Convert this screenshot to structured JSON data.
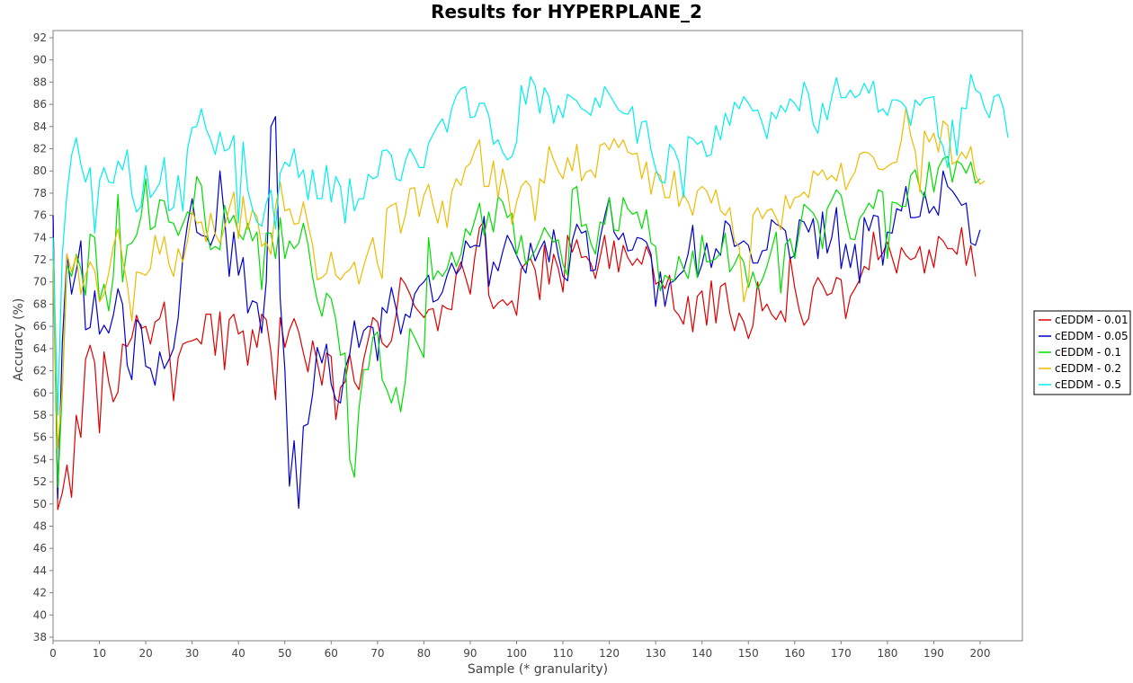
{
  "chart_data": {
    "type": "line",
    "title": "Results for HYPERPLANE_2",
    "xlabel": "Sample (* granularity)",
    "ylabel": "Accuracy (%)",
    "xlim": [
      0,
      210
    ],
    "ylim": [
      37.5,
      93
    ],
    "x_ticks": [
      0,
      10,
      20,
      30,
      40,
      50,
      60,
      70,
      80,
      90,
      100,
      110,
      120,
      130,
      140,
      150,
      160,
      170,
      180,
      190,
      200
    ],
    "y_ticks": [
      38,
      40,
      42,
      44,
      46,
      48,
      50,
      52,
      54,
      56,
      58,
      60,
      62,
      64,
      66,
      68,
      70,
      72,
      74,
      76,
      78,
      80,
      82,
      84,
      86,
      88,
      90,
      92
    ],
    "grid": false,
    "legend_position": "right",
    "series": [
      {
        "name": "cEDDM - 0.01",
        "color": "#dd0000",
        "x_start": 0,
        "values": [
          76,
          49.5,
          51,
          53.5,
          50.6,
          58,
          56,
          63,
          64.3,
          62.7,
          56.4,
          63.7,
          61,
          59.2,
          60.1,
          64.4,
          64.2,
          65,
          67,
          65.8,
          66,
          64.4,
          66.4,
          66.7,
          68.2,
          64,
          59.3,
          63.2,
          64.4,
          64.6,
          64.7,
          64.9,
          64.4,
          67.1,
          67.1,
          63.4,
          67.3,
          62.1,
          66.6,
          67.1,
          65.3,
          65.6,
          62.5,
          65.7,
          64.1,
          67.1,
          66.6,
          63.7,
          59.4,
          66.8,
          64.1,
          65.7,
          66.7,
          65.5,
          63.6,
          61.9,
          64.7,
          62.8,
          60.7,
          63.6,
          63.3,
          57.6,
          60.5,
          61,
          63.5,
          61,
          60.3,
          63,
          64.8,
          66.8,
          66.4,
          64.5,
          64.1,
          64.7,
          67,
          70.4,
          69.8,
          68.9,
          67.8,
          67.3,
          66.8,
          67.5,
          67.6,
          65.6,
          67.9,
          67.6,
          67.5,
          70.8,
          71.8,
          70.4,
          68.9,
          72.3,
          74.9,
          75.5,
          68.8,
          67.6,
          68.1,
          68.4,
          67.9,
          68.3,
          67,
          71.2,
          71.7,
          72.1,
          71.1,
          68.4,
          73.3,
          69.8,
          72.5,
          71.2,
          69.1,
          74.2,
          72.7,
          73.8,
          72.2,
          72.3,
          71.7,
          70.3,
          72.2,
          74.2,
          71.2,
          73.7,
          70.9,
          73.3,
          72.2,
          71.5,
          72.1,
          71.6,
          73.2,
          72.2,
          69.8,
          70.1,
          69.4,
          70.6,
          67.5,
          67,
          66.2,
          68.7,
          65.5,
          68.7,
          69.2,
          66.1,
          70.1,
          66.3,
          69.6,
          69.9,
          67.2,
          65.6,
          67.2,
          66.4,
          64.9,
          66.1,
          70,
          67.4,
          68,
          67.1,
          66.6,
          67.4,
          66.4,
          72.3,
          69.5,
          67.4,
          66.1,
          66.7,
          69.5,
          70.4,
          69.7,
          68.8,
          69,
          70.4,
          70.2,
          66.7,
          68.7,
          69.4,
          70.2,
          71.4,
          71.1,
          74.5,
          72,
          72.6,
          73.6,
          72.2,
          70.8,
          73.1,
          72.4,
          72,
          72.2,
          73.2,
          70.8,
          72.9,
          71.3,
          74.1,
          73.7,
          73,
          73,
          72.5,
          74.9,
          71.5,
          73.3,
          70.5
        ]
      },
      {
        "name": "cEDDM - 0.05",
        "color": "#0000cc",
        "x_start": 0,
        "values": [
          76,
          50.5,
          64.5,
          72.5,
          68.9,
          71,
          73.7,
          65.7,
          65.9,
          69.2,
          65.3,
          66.1,
          65.4,
          67,
          69.4,
          68,
          62.5,
          61.2,
          66.6,
          66.1,
          62.4,
          62.2,
          60.7,
          63.7,
          62.2,
          63,
          64,
          66.8,
          72.2,
          75.2,
          77.5,
          74.5,
          74.2,
          74.1,
          73.3,
          74.4,
          80,
          75.8,
          70.5,
          74.5,
          70.6,
          72.2,
          67.2,
          68.3,
          68.1,
          65.4,
          70,
          84,
          84.9,
          68.5,
          62.1,
          51.6,
          55.7,
          49.6,
          57,
          57.2,
          59.9,
          64.1,
          62.7,
          64.4,
          60.8,
          59.4,
          59.1,
          62.2,
          63.5,
          66.5,
          64.1,
          65.6,
          66,
          65.9,
          62.9,
          67.7,
          67.2,
          69.5,
          67.6,
          65.3,
          67.1,
          66.8,
          68.9,
          69.6,
          70,
          70.6,
          68.2,
          68.4,
          69.1,
          70.6,
          71.7,
          70.7,
          71.3,
          73.7,
          73.1,
          73.3,
          73.2,
          75.9,
          69.6,
          71.8,
          71,
          72.7,
          74.2,
          73.4,
          72.4,
          71.5,
          70.8,
          73.5,
          71.9,
          72.9,
          73.7,
          71.8,
          74.7,
          72.4,
          70.5,
          70.1,
          73.7,
          75.2,
          74.4,
          74.6,
          71,
          71.1,
          73.9,
          75.9,
          77.6,
          74.5,
          73.8,
          74.4,
          72.8,
          72.9,
          74,
          73.9,
          73.6,
          72.5,
          67.8,
          70.9,
          67.8,
          69.9,
          70.1,
          70.6,
          71,
          72.5,
          75.1,
          70.4,
          71.6,
          73.5,
          71.3,
          73,
          72.4,
          75.5,
          75.1,
          73.2,
          73.4,
          73.7,
          73.3,
          71.7,
          71.7,
          72.8,
          72.9,
          75.6,
          75.2,
          75,
          74.6,
          72.1,
          72.4,
          75.6,
          75.4,
          74.5,
          75.7,
          72.1,
          76.3,
          72.6,
          74,
          76.7,
          71.2,
          73.4,
          71.3,
          73.4,
          69.9,
          75.8,
          74.6,
          76,
          75.9,
          71.5,
          74.5,
          74.4,
          76.6,
          76.4,
          78.6,
          75.8,
          75.8,
          75.9,
          78.1,
          76.2,
          76.8,
          76,
          80,
          78.6,
          78.2,
          77.6,
          76.9,
          77.1,
          73.5,
          73.3,
          74.7
        ]
      },
      {
        "name": "cEDDM - 0.1",
        "color": "#00dd00",
        "x_start": 0,
        "values": [
          72,
          51.5,
          60.2,
          71.5,
          70.5,
          72.5,
          71.2,
          68.8,
          74.3,
          74,
          68.3,
          69.8,
          67.4,
          70.5,
          77.9,
          70,
          73.3,
          73.5,
          74.2,
          75.9,
          79.3,
          74.7,
          75,
          77.4,
          77.3,
          75.4,
          75.3,
          74.2,
          75.2,
          76.3,
          76.1,
          79.5,
          78.7,
          74.8,
          72.9,
          73.2,
          72.9,
          76.9,
          75.3,
          76,
          74.4,
          73.8,
          75.3,
          73.7,
          74.5,
          69.3,
          74.4,
          74.4,
          72.1,
          75.8,
          72.1,
          73.7,
          73,
          73.5,
          75.3,
          73.4,
          70.4,
          68.3,
          66.9,
          69,
          68.5,
          66.6,
          63.4,
          63.6,
          54,
          52.4,
          58.6,
          62.1,
          62.1,
          65,
          65.5,
          61.2,
          60.3,
          59.1,
          60.5,
          58.3,
          61.1,
          65.8,
          65,
          64.1,
          63.2,
          74,
          70.2,
          71,
          70.5,
          71.2,
          72.7,
          71.4,
          72.5,
          74.8,
          74.2,
          75.6,
          77.1,
          74.2,
          76.3,
          74.5,
          77.7,
          77.2,
          75.8,
          76.2,
          72.4,
          74.2,
          71.6,
          72.2,
          72.8,
          73.8,
          74.9,
          74.2,
          73.6,
          73.8,
          71.6,
          70.6,
          78.3,
          78.6,
          75,
          75.2,
          73.5,
          72.5,
          75.4,
          75.2,
          77.6,
          74.7,
          74.6,
          77.6,
          76.6,
          76.1,
          76.3,
          74.8,
          76.5,
          73.5,
          73.2,
          69.2,
          70.6,
          70.3,
          70.1,
          72.3,
          71.2,
          70.3,
          72.8,
          70.4,
          74.2,
          71.8,
          71.9,
          72.1,
          72.6,
          74.4,
          70.9,
          71.6,
          72.5,
          71.8,
          69.5,
          70.9,
          69.4,
          70.2,
          71.4,
          72.9,
          74.5,
          69,
          73.4,
          73.9,
          72.1,
          74.6,
          77,
          76.6,
          76.2,
          75.4,
          73,
          76.6,
          77.4,
          78.3,
          77.8,
          75.8,
          73.9,
          73.8,
          75.7,
          76.3,
          77.1,
          76.6,
          78.3,
          78.1,
          72.1,
          77.2,
          77.1,
          76.8,
          76.8,
          79.6,
          80.1,
          78.4,
          77.6,
          80.8,
          78.1,
          80.3,
          81.1,
          81.3,
          79,
          80.9,
          80.6,
          79.8,
          80.8,
          78.9,
          79.3
        ]
      },
      {
        "name": "cEDDM - 0.2",
        "color": "#eebb00",
        "x_start": 0,
        "values": [
          72,
          55,
          60.4,
          72.5,
          70.9,
          72.4,
          68.9,
          70.6,
          71.8,
          71,
          68.2,
          68.9,
          70.8,
          73.2,
          74.8,
          72.1,
          69.8,
          66.5,
          70.9,
          70.8,
          70.6,
          71.2,
          74.2,
          72.5,
          74.1,
          71.6,
          70.5,
          73,
          71.8,
          73.7,
          76.4,
          75.3,
          75.4,
          73.6,
          76.2,
          74.3,
          73.5,
          74.9,
          76.6,
          78.1,
          73.9,
          77.7,
          74.7,
          76.5,
          75.9,
          73.2,
          73.6,
          72.5,
          76.8,
          79,
          76.4,
          76.6,
          75.2,
          75.3,
          77.2,
          75.2,
          73.3,
          70.2,
          70.4,
          70.8,
          72.7,
          70.6,
          70.2,
          70.8,
          71.1,
          71.8,
          69.8,
          71.4,
          72.8,
          74,
          71.6,
          70.3,
          76.6,
          76.9,
          77.1,
          74.4,
          76,
          78.4,
          78.5,
          75.9,
          77.8,
          78.8,
          76.9,
          75.3,
          77.3,
          74.9,
          78.1,
          79.3,
          78.7,
          80.3,
          80.7,
          81.9,
          82.8,
          78.6,
          78.6,
          80.9,
          77.6,
          80.2,
          78.4,
          75.2,
          77.2,
          78.6,
          79.1,
          78.6,
          75.5,
          79.3,
          78.9,
          82.2,
          81,
          80,
          79.3,
          81.2,
          80,
          82.4,
          79.1,
          79.9,
          80.1,
          79.4,
          82.3,
          82.5,
          81.9,
          82.9,
          82.1,
          82.8,
          81.7,
          81.5,
          81.6,
          79.3,
          80.8,
          77.9,
          79.9,
          79.6,
          77.6,
          77.6,
          80,
          76.8,
          77.9,
          77.2,
          76,
          78.2,
          78.6,
          78.2,
          77.1,
          78.3,
          76.4,
          76,
          76.7,
          73.7,
          73.2,
          68.2,
          70,
          76,
          76.7,
          75.7,
          76.4,
          76.6,
          75.8,
          74.7,
          77.8,
          76.6,
          77.6,
          77.7,
          78.1,
          77.6,
          80,
          79.6,
          80.1,
          79.2,
          79.6,
          79.1,
          80.7,
          78.3,
          79.2,
          79.9,
          81.5,
          81.7,
          81.6,
          81.2,
          80.2,
          80.1,
          80.4,
          80.7,
          80.8,
          82.8,
          85.7,
          83.2,
          81.8,
          78.1,
          83.6,
          82.6,
          83.4,
          81.7,
          84.5,
          84.1,
          80.6,
          80.9,
          81.7,
          81.1,
          82.2,
          79.6,
          78.8,
          79.1
        ]
      },
      {
        "name": "cEDDM - 0.5",
        "color": "#00eeee",
        "x_start": 0,
        "values": [
          74,
          58,
          72.5,
          78,
          81.4,
          83,
          80.6,
          79,
          80.3,
          74.4,
          79.1,
          80.3,
          79,
          78.9,
          80.9,
          80.1,
          81.9,
          77.9,
          76.3,
          76.8,
          80.5,
          77.6,
          78.2,
          78.9,
          81.2,
          76.4,
          76.7,
          79.6,
          76.4,
          82,
          83.9,
          84,
          85.6,
          83.8,
          82.8,
          81.5,
          83.5,
          81.8,
          82,
          83.2,
          75.3,
          82.6,
          78.3,
          76.6,
          75.4,
          75,
          77.1,
          78.3,
          74.8,
          79.8,
          80.8,
          80.4,
          82,
          79.4,
          80.1,
          77.4,
          80.1,
          77.5,
          77.5,
          80.5,
          77.2,
          79.5,
          78.6,
          75.3,
          79.3,
          76.4,
          77.5,
          77.5,
          79.7,
          79.3,
          79.5,
          81.8,
          81.9,
          81.4,
          79.3,
          79.1,
          80.9,
          82,
          81.2,
          80.3,
          80.3,
          82.5,
          83.3,
          84.1,
          84.7,
          83.5,
          85.6,
          86.8,
          87.4,
          87.6,
          84.8,
          84.9,
          86.1,
          86.1,
          85,
          82.4,
          82.8,
          81.7,
          81,
          81.3,
          82.6,
          87.7,
          86,
          88.5,
          87.7,
          85.2,
          87.5,
          86.7,
          84.3,
          85.9,
          84.8,
          86.9,
          86.6,
          86.3,
          85.6,
          85.4,
          85,
          86.6,
          85.7,
          87.6,
          86.9,
          86.2,
          85.5,
          85.2,
          85.1,
          85.8,
          82.5,
          84.4,
          84.5,
          81.9,
          80.2,
          79.1,
          78.9,
          82.4,
          81.9,
          80.8,
          77.6,
          83.1,
          82.9,
          82.4,
          82.7,
          81.3,
          81.5,
          84.1,
          82.8,
          85.2,
          84.1,
          86.2,
          85.6,
          86.7,
          86.1,
          85.4,
          85.5,
          84.3,
          82.9,
          85.3,
          84.7,
          85.9,
          85.3,
          86.5,
          86.1,
          85.4,
          88,
          86.9,
          84.2,
          83.4,
          86.1,
          84.6,
          86.7,
          88.4,
          86.6,
          86.6,
          87.3,
          86.6,
          86.9,
          87.9,
          87,
          88.1,
          85.3,
          85.6,
          85,
          86.4,
          86.4,
          86.2,
          85.7,
          84.1,
          86.4,
          85.9,
          86.5,
          86.6,
          86.7,
          83.1,
          82.2,
          80.3,
          84.6,
          81.4,
          85.7,
          85.6,
          88.7,
          87.3,
          87,
          85.6,
          84.8,
          86.7,
          86.9,
          85.7,
          83
        ]
      }
    ]
  }
}
